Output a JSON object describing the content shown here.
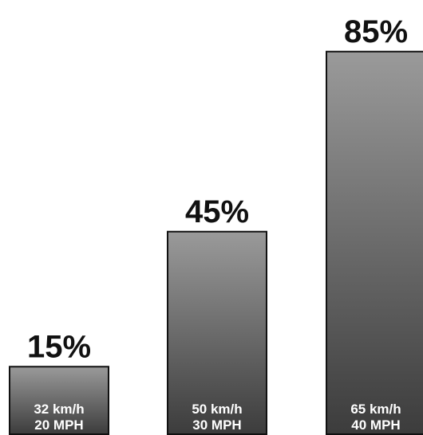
{
  "chart_data": {
    "type": "bar",
    "categories": [
      "32 km/h 20 MPH",
      "50 km/h 30 MPH",
      "65 km/h 40 MPH"
    ],
    "values": [
      15,
      45,
      85
    ],
    "value_labels": [
      "15%",
      "45%",
      "85%"
    ],
    "speed_kmh": [
      "32 km/h",
      "50 km/h",
      "65 km/h"
    ],
    "speed_mph": [
      "20 MPH",
      "30 MPH",
      "40 MPH"
    ],
    "title": "",
    "xlabel": "",
    "ylabel": "",
    "ylim": [
      0,
      100
    ],
    "grid": false,
    "colors": {
      "bar_top": "#9a9a9a",
      "bar_bottom": "#3c3c3c",
      "outline": "#111111"
    }
  }
}
